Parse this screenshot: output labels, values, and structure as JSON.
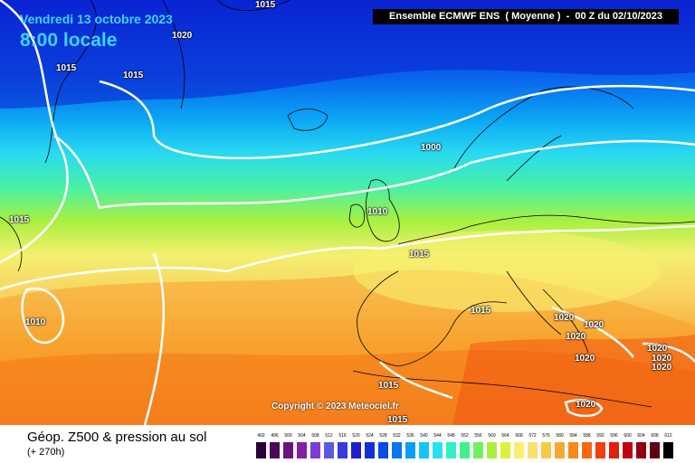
{
  "header": {
    "date": "Vendredi 13 octobre 2023",
    "time": "8:00 locale",
    "run": "Ensemble ECMWF ENS  ( Moyenne )  -  00 Z du 02/10/2023"
  },
  "copyright": "Copyright © 2023 Meteociel.fr",
  "isobar_labels": [
    "1015",
    "1020",
    "1015",
    "1015",
    "1000",
    "1015",
    "1010",
    "1010",
    "1015",
    "1015",
    "1020",
    "1020",
    "1020",
    "1020",
    "1020",
    "1020",
    "1015",
    "1015",
    "1020"
  ],
  "legend": {
    "title": "Géop. Z500 & pression au sol",
    "subtitle": "(+ 270h)",
    "ticks": [
      "492",
      "496",
      "500",
      "504",
      "508",
      "512",
      "516",
      "520",
      "524",
      "528",
      "532",
      "536",
      "540",
      "544",
      "548",
      "552",
      "556",
      "560",
      "564",
      "568",
      "572",
      "576",
      "580",
      "584",
      "588",
      "592",
      "596",
      "600",
      "604",
      "608",
      "612"
    ],
    "colors": [
      "#2b0033",
      "#4a0a55",
      "#6a1480",
      "#821fa3",
      "#7a3fd0",
      "#5a5ae0",
      "#3a3ad8",
      "#2020c8",
      "#1030d8",
      "#0a4ae8",
      "#0a74f0",
      "#0a9ef6",
      "#12c6f8",
      "#2ae0f0",
      "#30f0c8",
      "#40f090",
      "#70f060",
      "#a8f040",
      "#e0f040",
      "#f8f070",
      "#f8e070",
      "#f8c848",
      "#f8a830",
      "#f88818",
      "#f86810",
      "#f04010",
      "#e02010",
      "#c00010",
      "#900010",
      "#600010",
      "#000000"
    ]
  },
  "colors": {
    "isobar": "#ffffff",
    "title_text": "#39d6ff",
    "land_outline": "#000000"
  }
}
